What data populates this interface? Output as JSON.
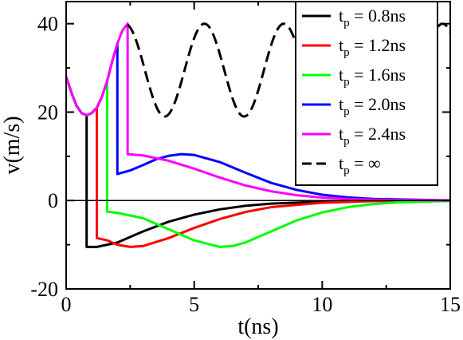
{
  "chart_data": {
    "type": "line",
    "xlabel": "t(ns)",
    "ylabel": "v(m/s)",
    "xlim": [
      0,
      15
    ],
    "ylim": [
      -20,
      45
    ],
    "xticks": [
      0,
      5,
      10,
      15
    ],
    "yticks": [
      -20,
      0,
      20,
      40
    ],
    "xtick_labels": [
      "0",
      "5",
      "10",
      "15"
    ],
    "ytick_labels": [
      "-20",
      "0",
      "20",
      "40"
    ],
    "zero_line": true,
    "grid": false,
    "legend_position": "top-right",
    "series": [
      {
        "legend_base": "t",
        "legend_sub": "p",
        "legend_rest": " = 0.8ns",
        "color": "#000000",
        "dash": "solid",
        "points": [
          [
            0,
            28
          ],
          [
            0.2,
            24.5
          ],
          [
            0.4,
            21.5
          ],
          [
            0.6,
            19.8
          ],
          [
            0.8,
            19.3
          ],
          [
            0.8,
            -10.5
          ],
          [
            1.2,
            -10.5
          ],
          [
            2,
            -9.5
          ],
          [
            3,
            -7
          ],
          [
            4,
            -4.8
          ],
          [
            5,
            -3.2
          ],
          [
            6,
            -2
          ],
          [
            7,
            -1.2
          ],
          [
            8,
            -0.7
          ],
          [
            10,
            -0.25
          ],
          [
            12,
            -0.08
          ],
          [
            15,
            0
          ]
        ]
      },
      {
        "legend_base": "t",
        "legend_sub": "p",
        "legend_rest": " = 1.2ns",
        "color": "#ff0000",
        "dash": "solid",
        "points": [
          [
            0,
            28
          ],
          [
            0.2,
            24.5
          ],
          [
            0.4,
            21.5
          ],
          [
            0.6,
            19.8
          ],
          [
            0.8,
            19.3
          ],
          [
            1,
            19.8
          ],
          [
            1.2,
            21
          ],
          [
            1.2,
            -8.5
          ],
          [
            1.6,
            -9
          ],
          [
            2,
            -10
          ],
          [
            2.5,
            -10.5
          ],
          [
            3,
            -10.3
          ],
          [
            4,
            -8.5
          ],
          [
            5,
            -6.2
          ],
          [
            6,
            -4.2
          ],
          [
            7,
            -2.6
          ],
          [
            8,
            -1.5
          ],
          [
            10,
            -0.5
          ],
          [
            12,
            -0.15
          ],
          [
            15,
            0
          ]
        ]
      },
      {
        "legend_base": "t",
        "legend_sub": "p",
        "legend_rest": " = 1.6ns",
        "color": "#00ff00",
        "dash": "solid",
        "points": [
          [
            0,
            28
          ],
          [
            0.2,
            24.5
          ],
          [
            0.4,
            21.5
          ],
          [
            0.6,
            19.8
          ],
          [
            0.8,
            19.3
          ],
          [
            1,
            19.8
          ],
          [
            1.2,
            21
          ],
          [
            1.4,
            23.5
          ],
          [
            1.6,
            27
          ],
          [
            1.6,
            -2.5
          ],
          [
            2,
            -2.8
          ],
          [
            3,
            -4
          ],
          [
            4,
            -6.5
          ],
          [
            5,
            -9
          ],
          [
            6,
            -10.5
          ],
          [
            6.5,
            -10.3
          ],
          [
            7,
            -9.5
          ],
          [
            8,
            -7
          ],
          [
            9,
            -4.5
          ],
          [
            10,
            -2.7
          ],
          [
            11,
            -1.5
          ],
          [
            12,
            -0.8
          ],
          [
            13,
            -0.4
          ],
          [
            15,
            -0.1
          ]
        ]
      },
      {
        "legend_base": "t",
        "legend_sub": "p",
        "legend_rest": " = 2.0ns",
        "color": "#0000ff",
        "dash": "solid",
        "points": [
          [
            0,
            28
          ],
          [
            0.2,
            24.5
          ],
          [
            0.4,
            21.5
          ],
          [
            0.6,
            19.8
          ],
          [
            0.8,
            19.3
          ],
          [
            1,
            19.8
          ],
          [
            1.2,
            21
          ],
          [
            1.4,
            23.5
          ],
          [
            1.6,
            27
          ],
          [
            1.8,
            31.5
          ],
          [
            2,
            35.5
          ],
          [
            2,
            6
          ],
          [
            2.5,
            6.8
          ],
          [
            3,
            8
          ],
          [
            3.5,
            9.3
          ],
          [
            4,
            10.1
          ],
          [
            4.5,
            10.5
          ],
          [
            5,
            10.3
          ],
          [
            6,
            8.7
          ],
          [
            7,
            6.3
          ],
          [
            8,
            4
          ],
          [
            9,
            2.4
          ],
          [
            10,
            1.3
          ],
          [
            11,
            0.7
          ],
          [
            12,
            0.35
          ],
          [
            15,
            0.05
          ]
        ]
      },
      {
        "legend_base": "t",
        "legend_sub": "p",
        "legend_rest": " = 2.4ns",
        "color": "#ff00ff",
        "dash": "solid",
        "points": [
          [
            0,
            28
          ],
          [
            0.2,
            24.5
          ],
          [
            0.4,
            21.5
          ],
          [
            0.6,
            19.8
          ],
          [
            0.8,
            19.3
          ],
          [
            1,
            19.8
          ],
          [
            1.2,
            21
          ],
          [
            1.4,
            23.5
          ],
          [
            1.6,
            27
          ],
          [
            1.8,
            31.5
          ],
          [
            2,
            35.5
          ],
          [
            2.2,
            38.5
          ],
          [
            2.4,
            40
          ],
          [
            2.4,
            10.5
          ],
          [
            3,
            10.2
          ],
          [
            4,
            9
          ],
          [
            5,
            7.2
          ],
          [
            6,
            5.2
          ],
          [
            7,
            3.4
          ],
          [
            8,
            2.1
          ],
          [
            9,
            1.2
          ],
          [
            10,
            0.65
          ],
          [
            11,
            0.35
          ],
          [
            12,
            0.18
          ],
          [
            15,
            0.03
          ]
        ]
      },
      {
        "legend_base": "t",
        "legend_sub": "p",
        "legend_rest": " = ∞",
        "color": "#000000",
        "dash": "dashed",
        "periodic": {
          "mean": 29.5,
          "amplitude": 10.5,
          "period": 3.1,
          "peak_at": 2.3,
          "x_start": 2.4,
          "x_end": 15
        }
      }
    ]
  }
}
